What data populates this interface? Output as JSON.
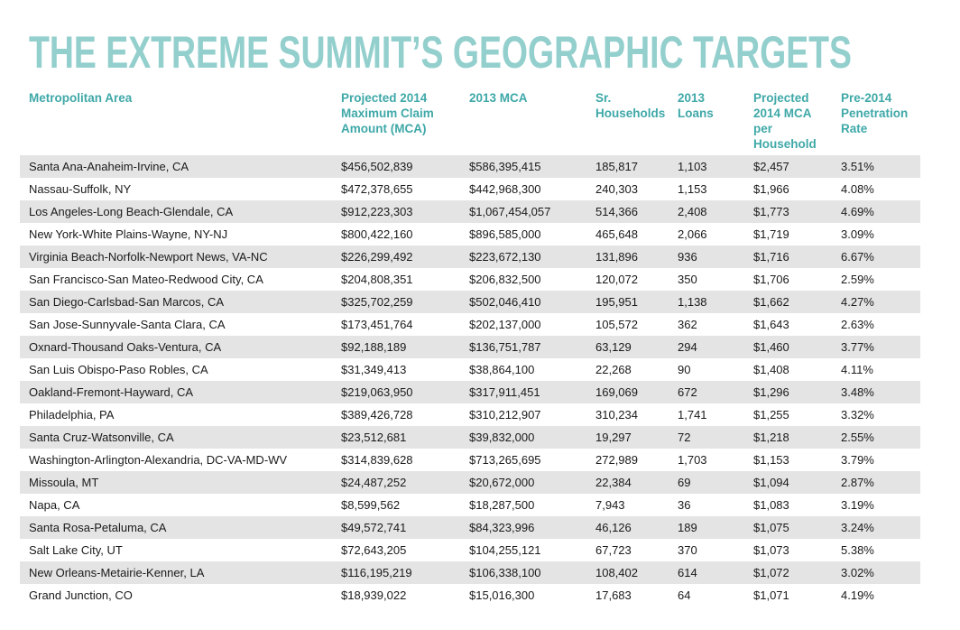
{
  "header": {
    "title": "THE EXTREME SUMMIT’S GEOGRAPHIC TARGETS"
  },
  "table": {
    "columns": [
      "Metropolitan Area",
      "Projected 2014 Maximum Claim Amount (MCA)",
      "2013 MCA",
      "Sr. Households",
      "2013 Loans",
      "Projected 2014 MCA per Household",
      "Pre-2014 Penetration Rate"
    ],
    "rows": [
      [
        "Santa Ana-Anaheim-Irvine, CA",
        "$456,502,839",
        "$586,395,415",
        "185,817",
        "1,103",
        "$2,457",
        "3.51%"
      ],
      [
        "Nassau-Suffolk, NY",
        "$472,378,655",
        "$442,968,300",
        "240,303",
        "1,153",
        "$1,966",
        "4.08%"
      ],
      [
        "Los Angeles-Long Beach-Glendale, CA",
        "$912,223,303",
        "$1,067,454,057",
        "514,366",
        "2,408",
        "$1,773",
        "4.69%"
      ],
      [
        "New York-White Plains-Wayne, NY-NJ",
        "$800,422,160",
        "$896,585,000",
        "465,648",
        "2,066",
        "$1,719",
        "3.09%"
      ],
      [
        "Virginia Beach-Norfolk-Newport News, VA-NC",
        "$226,299,492",
        "$223,672,130",
        "131,896",
        "936",
        "$1,716",
        "6.67%"
      ],
      [
        "San Francisco-San Mateo-Redwood City, CA",
        "$204,808,351",
        "$206,832,500",
        "120,072",
        "350",
        "$1,706",
        "2.59%"
      ],
      [
        "San Diego-Carlsbad-San Marcos, CA",
        "$325,702,259",
        "$502,046,410",
        "195,951",
        "1,138",
        "$1,662",
        "4.27%"
      ],
      [
        "San Jose-Sunnyvale-Santa Clara, CA",
        "$173,451,764",
        "$202,137,000",
        "105,572",
        "362",
        "$1,643",
        "2.63%"
      ],
      [
        "Oxnard-Thousand Oaks-Ventura, CA",
        "$92,188,189",
        "$136,751,787",
        "63,129",
        "294",
        "$1,460",
        "3.77%"
      ],
      [
        "San Luis Obispo-Paso Robles, CA",
        "$31,349,413",
        "$38,864,100",
        "22,268",
        "90",
        "$1,408",
        "4.11%"
      ],
      [
        "Oakland-Fremont-Hayward, CA",
        "$219,063,950",
        "$317,911,451",
        "169,069",
        "672",
        "$1,296",
        "3.48%"
      ],
      [
        "Philadelphia, PA",
        "$389,426,728",
        "$310,212,907",
        "310,234",
        "1,741",
        "$1,255",
        "3.32%"
      ],
      [
        "Santa Cruz-Watsonville, CA",
        "$23,512,681",
        "$39,832,000",
        "19,297",
        "72",
        "$1,218",
        "2.55%"
      ],
      [
        "Washington-Arlington-Alexandria, DC-VA-MD-WV",
        "$314,839,628",
        "$713,265,695",
        "272,989",
        "1,703",
        "$1,153",
        "3.79%"
      ],
      [
        "Missoula, MT",
        "$24,487,252",
        "$20,672,000",
        "22,384",
        "69",
        "$1,094",
        "2.87%"
      ],
      [
        "Napa, CA",
        "$8,599,562",
        "$18,287,500",
        "7,943",
        "36",
        "$1,083",
        "3.19%"
      ],
      [
        "Santa Rosa-Petaluma, CA",
        "$49,572,741",
        "$84,323,996",
        "46,126",
        "189",
        "$1,075",
        "3.24%"
      ],
      [
        "Salt Lake City, UT",
        "$72,643,205",
        "$104,255,121",
        "67,723",
        "370",
        "$1,073",
        "5.38%"
      ],
      [
        "New Orleans-Metairie-Kenner, LA",
        "$116,195,219",
        "$106,338,100",
        "108,402",
        "614",
        "$1,072",
        "3.02%"
      ],
      [
        "Grand Junction, CO",
        "$18,939,022",
        "$15,016,300",
        "17,683",
        "64",
        "$1,071",
        "4.19%"
      ]
    ]
  }
}
